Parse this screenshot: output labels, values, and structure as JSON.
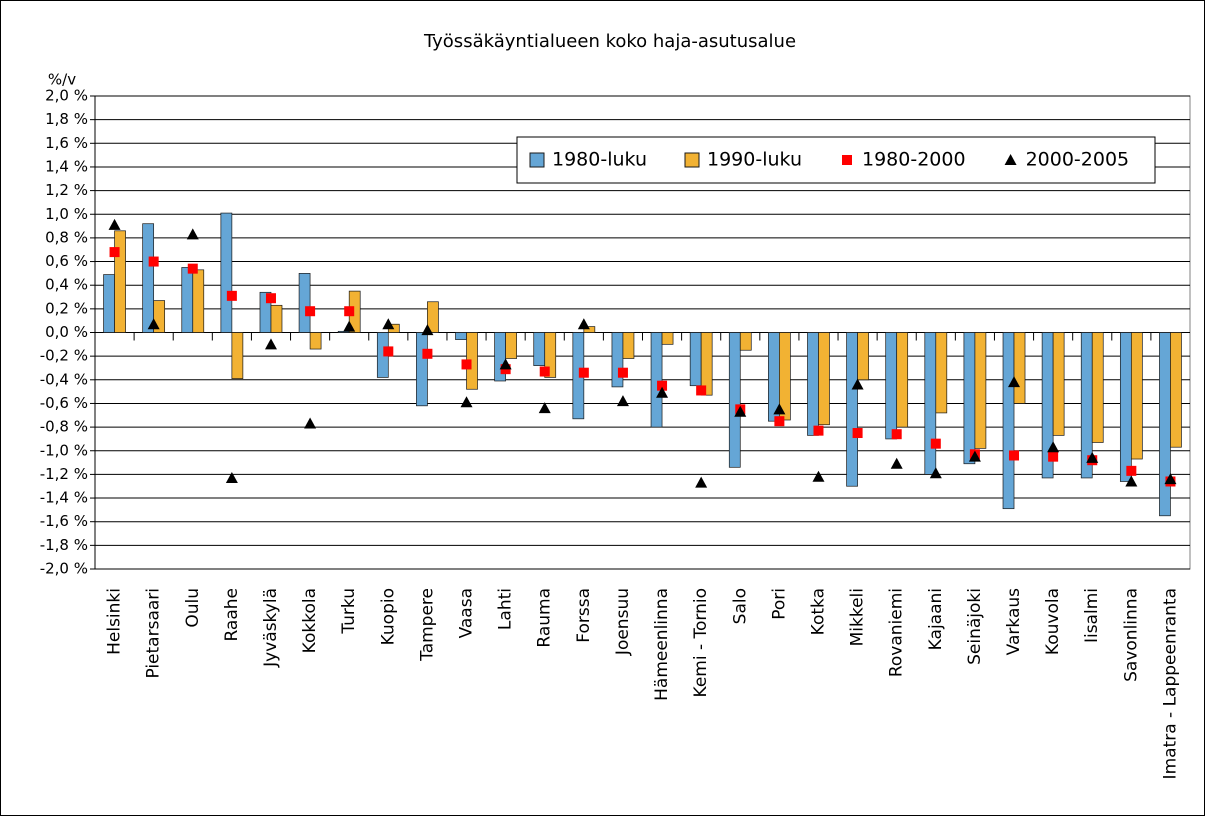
{
  "chart_data": {
    "type": "bar",
    "title": "Työssäkäyntialueen koko haja-asutusalue",
    "y_axis_label": "%/v",
    "categories": [
      "Helsinki",
      "Pietarsaari",
      "Oulu",
      "Raahe",
      "Jyväskylä",
      "Kokkola",
      "Turku",
      "Kuopio",
      "Tampere",
      "Vaasa",
      "Lahti",
      "Rauma",
      "Forssa",
      "Joensuu",
      "Hämeenlinna",
      "Kemi - Tornio",
      "Salo",
      "Pori",
      "Kotka",
      "Mikkeli",
      "Rovaniemi",
      "Kajaani",
      "Seinäjoki",
      "Varkaus",
      "Kouvola",
      "Iisalmi",
      "Savonlinna",
      "Imatra - Lappeenranta"
    ],
    "series": [
      {
        "name": "1980-luku",
        "kind": "bar",
        "color": "#65a6d6",
        "values": [
          0.49,
          0.92,
          0.55,
          1.01,
          0.34,
          0.5,
          0.01,
          -0.38,
          -0.62,
          -0.06,
          -0.41,
          -0.28,
          -0.73,
          -0.46,
          -0.8,
          -0.45,
          -1.14,
          -0.75,
          -0.87,
          -1.3,
          -0.9,
          -1.2,
          -1.11,
          -1.49,
          -1.23,
          -1.23,
          -1.26,
          -1.55
        ]
      },
      {
        "name": "1990-luku",
        "kind": "bar",
        "color": "#f2b233",
        "values": [
          0.86,
          0.27,
          0.53,
          -0.39,
          0.23,
          -0.14,
          0.35,
          0.07,
          0.26,
          -0.48,
          -0.22,
          -0.38,
          0.05,
          -0.22,
          -0.1,
          -0.53,
          -0.15,
          -0.74,
          -0.78,
          -0.4,
          -0.8,
          -0.68,
          -0.98,
          -0.6,
          -0.87,
          -0.93,
          -1.07,
          -0.97
        ]
      },
      {
        "name": "1980-2000",
        "kind": "square",
        "color": "#ff0000",
        "values": [
          0.68,
          0.6,
          0.54,
          0.31,
          0.29,
          0.18,
          0.18,
          -0.16,
          -0.18,
          -0.27,
          -0.31,
          -0.33,
          -0.34,
          -0.34,
          -0.45,
          -0.49,
          -0.65,
          -0.75,
          -0.83,
          -0.85,
          -0.86,
          -0.94,
          -1.03,
          -1.04,
          -1.05,
          -1.08,
          -1.17,
          -1.26
        ]
      },
      {
        "name": "2000-2005",
        "kind": "triangle",
        "color": "#000000",
        "values": [
          0.91,
          0.07,
          0.83,
          -1.23,
          -0.1,
          -0.77,
          0.05,
          0.07,
          0.02,
          -0.59,
          -0.27,
          -0.64,
          0.07,
          -0.58,
          -0.51,
          -1.27,
          -0.67,
          -0.65,
          -1.22,
          -0.44,
          -1.11,
          -1.19,
          -1.05,
          -0.42,
          -0.97,
          -1.06,
          -1.26,
          -1.24
        ]
      }
    ],
    "ylim": [
      -2.0,
      2.0
    ],
    "yticks": [
      {
        "value": 2.0,
        "label": "2,0 %"
      },
      {
        "value": 1.8,
        "label": "1,8 %"
      },
      {
        "value": 1.6,
        "label": "1,6 %"
      },
      {
        "value": 1.4,
        "label": "1,4 %"
      },
      {
        "value": 1.2,
        "label": "1,2 %"
      },
      {
        "value": 1.0,
        "label": "1,0 %"
      },
      {
        "value": 0.8,
        "label": "0,8 %"
      },
      {
        "value": 0.6,
        "label": "0,6 %"
      },
      {
        "value": 0.4,
        "label": "0,4 %"
      },
      {
        "value": 0.2,
        "label": "0,2 %"
      },
      {
        "value": 0.0,
        "label": "0,0 %"
      },
      {
        "value": -0.2,
        "label": "-0,2 %"
      },
      {
        "value": -0.4,
        "label": "-0,4 %"
      },
      {
        "value": -0.6,
        "label": "-0,6 %"
      },
      {
        "value": -0.8,
        "label": "-0,8 %"
      },
      {
        "value": -1.0,
        "label": "-1,0 %"
      },
      {
        "value": -1.2,
        "label": "-1,2 %"
      },
      {
        "value": -1.4,
        "label": "-1,4 %"
      },
      {
        "value": -1.6,
        "label": "-1,6 %"
      },
      {
        "value": -1.8,
        "label": "-1,8 %"
      },
      {
        "value": -2.0,
        "label": "-2,0 %"
      }
    ],
    "grid": true,
    "legend_position": "top-right"
  }
}
